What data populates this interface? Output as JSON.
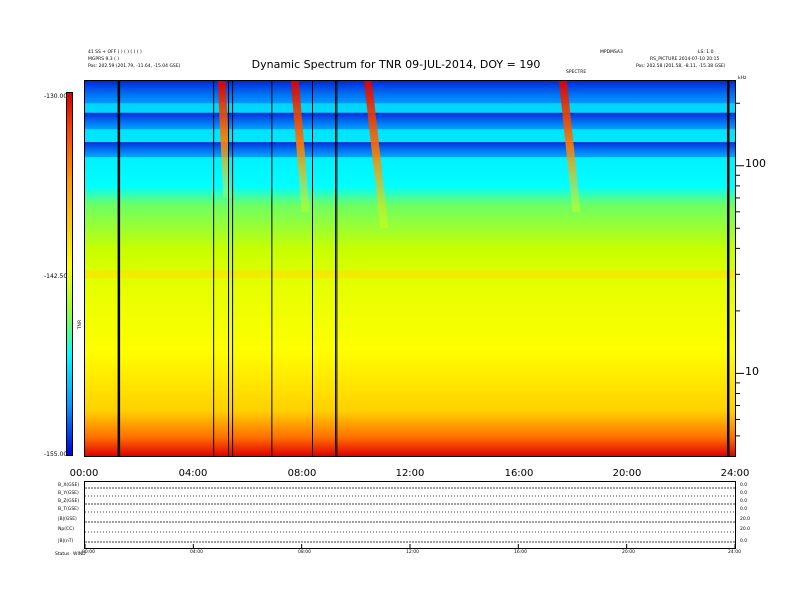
{
  "header": {
    "left_lines": [
      "41 SS + OFF ( ) ( ) ( ) ( )",
      "MGPRS 9.3 ( )",
      "Pos:     202.59 (201.79, -11.64, -15.04 GSE)"
    ],
    "center_small": "SPECTRE",
    "right_top_a": "MPDMSA3",
    "right_top_b": "LS: 1.0",
    "right_mid": "RS_PICTURE 2014-07-10 20:15",
    "right_pos": "Pos:   202.58 (201.58, -8.11, -15.38 GSE)",
    "right_khz": "kHz"
  },
  "chart_data": {
    "type": "heatmap",
    "title": "Dynamic Spectrum for TNR 09-JUL-2014, DOY = 190",
    "x_ticks": [
      "00:00",
      "04:00",
      "08:00",
      "12:00",
      "16:00",
      "20:00",
      "24:00"
    ],
    "xlim_hours": [
      0,
      24
    ],
    "y_ticks_right": [
      "100",
      "10"
    ],
    "ylim_khz": [
      4,
      256
    ],
    "y_scale": "log",
    "colorbar": {
      "label": "TNR",
      "ticks": [
        "-130.00",
        "-142.50",
        "-155.00"
      ],
      "range_db": [
        -155,
        -130
      ],
      "colors": [
        "#0000d8",
        "#009dff",
        "#00ffff",
        "#9cff2e",
        "#ffff00",
        "#ff9d00",
        "#ff4000",
        "#d40000"
      ]
    },
    "vertical_lines_hours": [
      1.25,
      4.75,
      5.3,
      5.45,
      6.9,
      8.4,
      9.25,
      9.3,
      23.75
    ],
    "bursts": [
      {
        "start_h": 4.9,
        "end_h": 5.4,
        "top_khz": 256,
        "bottom_khz": 70
      },
      {
        "start_h": 7.6,
        "end_h": 8.3,
        "top_khz": 256,
        "bottom_khz": 60
      },
      {
        "start_h": 10.3,
        "end_h": 11.2,
        "top_khz": 256,
        "bottom_khz": 50
      },
      {
        "start_h": 17.5,
        "end_h": 18.3,
        "top_khz": 256,
        "bottom_khz": 60
      }
    ],
    "plasma_line_khz": 30
  },
  "time_series": {
    "rows": [
      "B_X(GSE)",
      "B_Y(GSE)",
      "B_Z(GSE)",
      "B_T(GSE)",
      "|B|(GSE)",
      "Np(CC)",
      "|B|(nT)"
    ],
    "right_values": [
      "0.0",
      "0.0",
      "0.0",
      "0.0",
      "20.0",
      "20.0",
      "0.0"
    ],
    "x_ticks": [
      "00:00",
      "04:00",
      "08:00",
      "12:00",
      "16:00",
      "20:00",
      "24:00"
    ],
    "bottom_left": "Status",
    "bottom_left_b": "WIND"
  }
}
